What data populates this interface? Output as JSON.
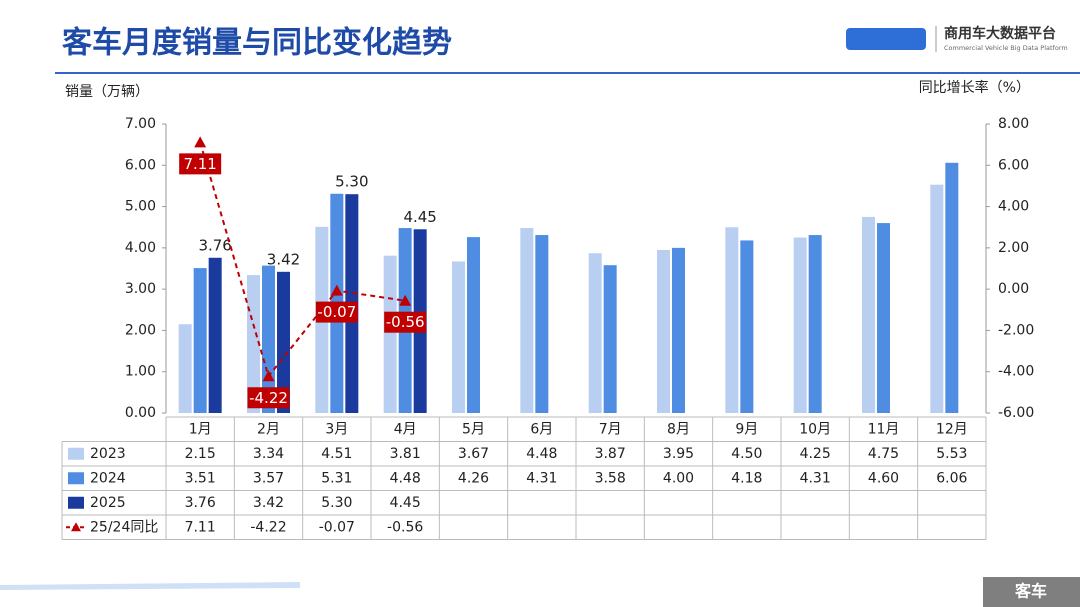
{
  "header": {
    "logo_text": "商用车大数据平台",
    "logo_subtitle": "Commercial Vehicle Big Data Platform"
  },
  "footer_tag": "客车",
  "chart_data": {
    "type": "bar",
    "title": "客车月度销量与同比变化趋势",
    "y_label": "销量（万辆）",
    "y2_label": "同比增长率（%）",
    "categories": [
      "1月",
      "2月",
      "3月",
      "4月",
      "5月",
      "6月",
      "7月",
      "8月",
      "9月",
      "10月",
      "11月",
      "12月"
    ],
    "series": [
      {
        "name": "2023",
        "type": "bar",
        "color": "#b8cff2",
        "values": [
          2.15,
          3.34,
          4.51,
          3.81,
          3.67,
          4.48,
          3.87,
          3.95,
          4.5,
          4.25,
          4.75,
          5.53
        ],
        "value_labels": [
          "2.15",
          "3.34",
          "4.51",
          "3.81",
          "3.67",
          "4.48",
          "3.87",
          "3.95",
          "4.50",
          "4.25",
          "4.75",
          "5.53"
        ]
      },
      {
        "name": "2024",
        "type": "bar",
        "color": "#4f8de3",
        "values": [
          3.51,
          3.57,
          5.31,
          4.48,
          4.26,
          4.31,
          3.58,
          4.0,
          4.18,
          4.31,
          4.6,
          6.06
        ],
        "value_labels": [
          "3.51",
          "3.57",
          "5.31",
          "4.48",
          "4.26",
          "4.31",
          "3.58",
          "4.00",
          "4.18",
          "4.31",
          "4.60",
          "6.06"
        ]
      },
      {
        "name": "2025",
        "type": "bar",
        "color": "#1b3a9e",
        "values": [
          3.76,
          3.42,
          5.3,
          4.45,
          null,
          null,
          null,
          null,
          null,
          null,
          null,
          null
        ],
        "value_labels": [
          "3.76",
          "3.42",
          "5.30",
          "4.45",
          null,
          null,
          null,
          null,
          null,
          null,
          null,
          null
        ]
      },
      {
        "name": "25/24同比",
        "type": "line",
        "axis": "y2",
        "color": "#c00000",
        "values": [
          7.11,
          -4.22,
          -0.07,
          -0.56,
          null,
          null,
          null,
          null,
          null,
          null,
          null,
          null
        ],
        "value_labels": [
          "7.11",
          "-4.22",
          "-0.07",
          "-0.56",
          null,
          null,
          null,
          null,
          null,
          null,
          null,
          null
        ]
      }
    ],
    "ylim": [
      0,
      7
    ],
    "yticks": [
      {
        "value": 0,
        "label": "0.00"
      },
      {
        "value": 1,
        "label": "1.00"
      },
      {
        "value": 2,
        "label": "2.00"
      },
      {
        "value": 3,
        "label": "3.00"
      },
      {
        "value": 4,
        "label": "4.00"
      },
      {
        "value": 5,
        "label": "5.00"
      },
      {
        "value": 6,
        "label": "6.00"
      },
      {
        "value": 7,
        "label": "7.00"
      }
    ],
    "y2lim": [
      -6,
      8
    ],
    "y2ticks": [
      {
        "value": -6,
        "label": "-6.00"
      },
      {
        "value": -4,
        "label": "-4.00"
      },
      {
        "value": -2,
        "label": "-2.00"
      },
      {
        "value": 0,
        "label": "0.00"
      },
      {
        "value": 2,
        "label": "2.00"
      },
      {
        "value": 4,
        "label": "4.00"
      },
      {
        "value": 6,
        "label": "6.00"
      },
      {
        "value": 8,
        "label": "8.00"
      }
    ]
  }
}
